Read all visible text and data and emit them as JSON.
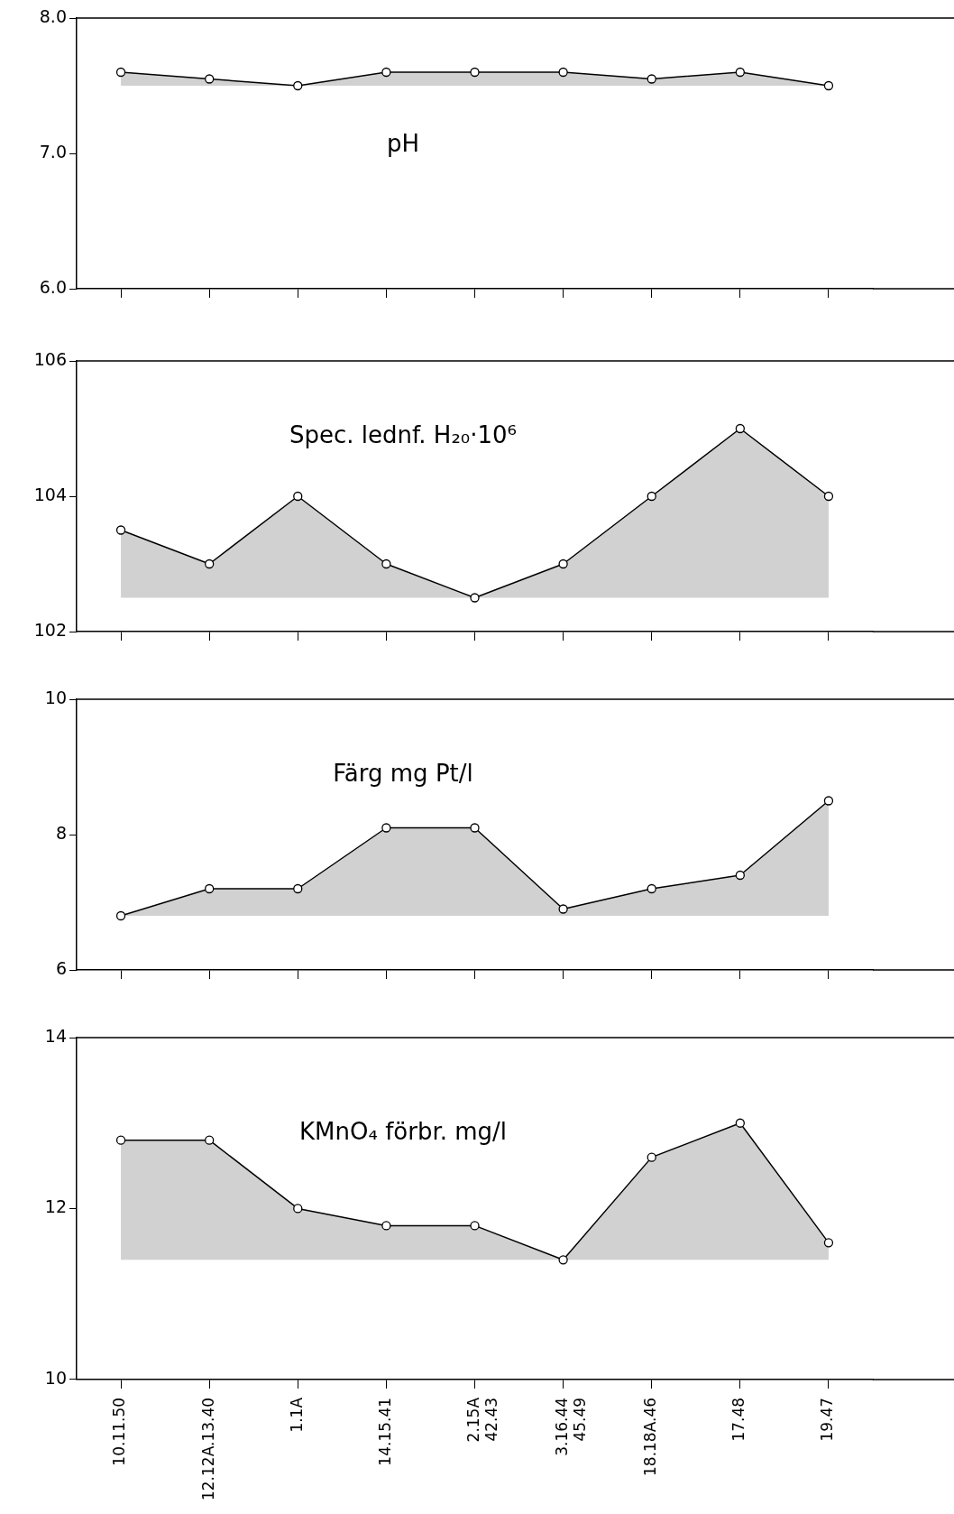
{
  "chart_data": [
    {
      "type": "area",
      "title": "pH",
      "categories": [
        null,
        null,
        null,
        null,
        null,
        null,
        null,
        null,
        null
      ],
      "values": [
        7.6,
        7.55,
        7.5,
        7.6,
        7.6,
        7.6,
        7.55,
        7.6,
        7.5
      ],
      "color": "#000000",
      "ylim": [
        6,
        8
      ],
      "yticks": [
        {
          "value": 6,
          "label": "6.0"
        },
        {
          "value": 7,
          "label": "7.0"
        },
        {
          "value": 8,
          "label": "8.0"
        }
      ],
      "marker": "circle",
      "tick_labels": "y"
    },
    {
      "type": "area",
      "title": "Spec. lednf. H₂₀·10⁶",
      "categories": [
        null,
        null,
        null,
        null,
        null,
        null,
        null,
        null,
        null
      ],
      "values": [
        103.5,
        103,
        104,
        103,
        102.5,
        103,
        104,
        105,
        104
      ],
      "color": "#000000",
      "ylim": [
        102,
        106
      ],
      "yticks": [
        102,
        104,
        106
      ],
      "marker": "circle",
      "tick_labels": "y"
    },
    {
      "type": "area",
      "title": "Färg mg Pt/l",
      "categories": [
        null,
        null,
        null,
        null,
        null,
        null,
        null,
        null,
        null
      ],
      "values": [
        6.8,
        7.2,
        7.2,
        8.1,
        8.1,
        6.9,
        7.2,
        7.4,
        8.5
      ],
      "color": "#000000",
      "ylim": [
        6,
        10
      ],
      "yticks": [
        6,
        8,
        10
      ],
      "marker": "circle",
      "tick_labels": "y"
    },
    {
      "type": "area",
      "title": "KMnO₄ förbr. mg/l",
      "categories": [
        "10.11.50",
        "12.12A.13.40",
        "1.1A",
        "14.15.41",
        "2.15A\n42.43",
        "3.16.44\n45.49",
        "18.18A.46",
        "17.48",
        "19.47"
      ],
      "values": [
        12.8,
        12.8,
        12.0,
        11.8,
        11.8,
        11.4,
        12.6,
        13.0,
        11.6
      ],
      "color": "#000000",
      "ylim": [
        10,
        14
      ],
      "yticks": [
        10,
        12,
        14
      ],
      "marker": "circle"
    }
  ]
}
